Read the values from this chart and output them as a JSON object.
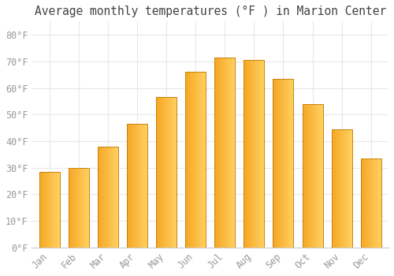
{
  "title": "Average monthly temperatures (°F ) in Marion Center",
  "months": [
    "Jan",
    "Feb",
    "Mar",
    "Apr",
    "May",
    "Jun",
    "Jul",
    "Aug",
    "Sep",
    "Oct",
    "Nov",
    "Dec"
  ],
  "values": [
    28.5,
    30.0,
    38.0,
    46.5,
    56.5,
    66.0,
    71.5,
    70.5,
    63.5,
    54.0,
    44.5,
    33.5
  ],
  "bar_color_left": "#F5A623",
  "bar_color_right": "#FFD060",
  "bar_edge_color": "#C8830A",
  "ylim": [
    0,
    85
  ],
  "yticks": [
    0,
    10,
    20,
    30,
    40,
    50,
    60,
    70,
    80
  ],
  "ytick_labels": [
    "0°F",
    "10°F",
    "20°F",
    "30°F",
    "40°F",
    "50°F",
    "60°F",
    "70°F",
    "80°F"
  ],
  "bg_color": "#FFFFFF",
  "grid_color": "#E8E8E8",
  "title_fontsize": 10.5,
  "tick_fontsize": 8.5,
  "font_family": "monospace",
  "bar_width": 0.7
}
